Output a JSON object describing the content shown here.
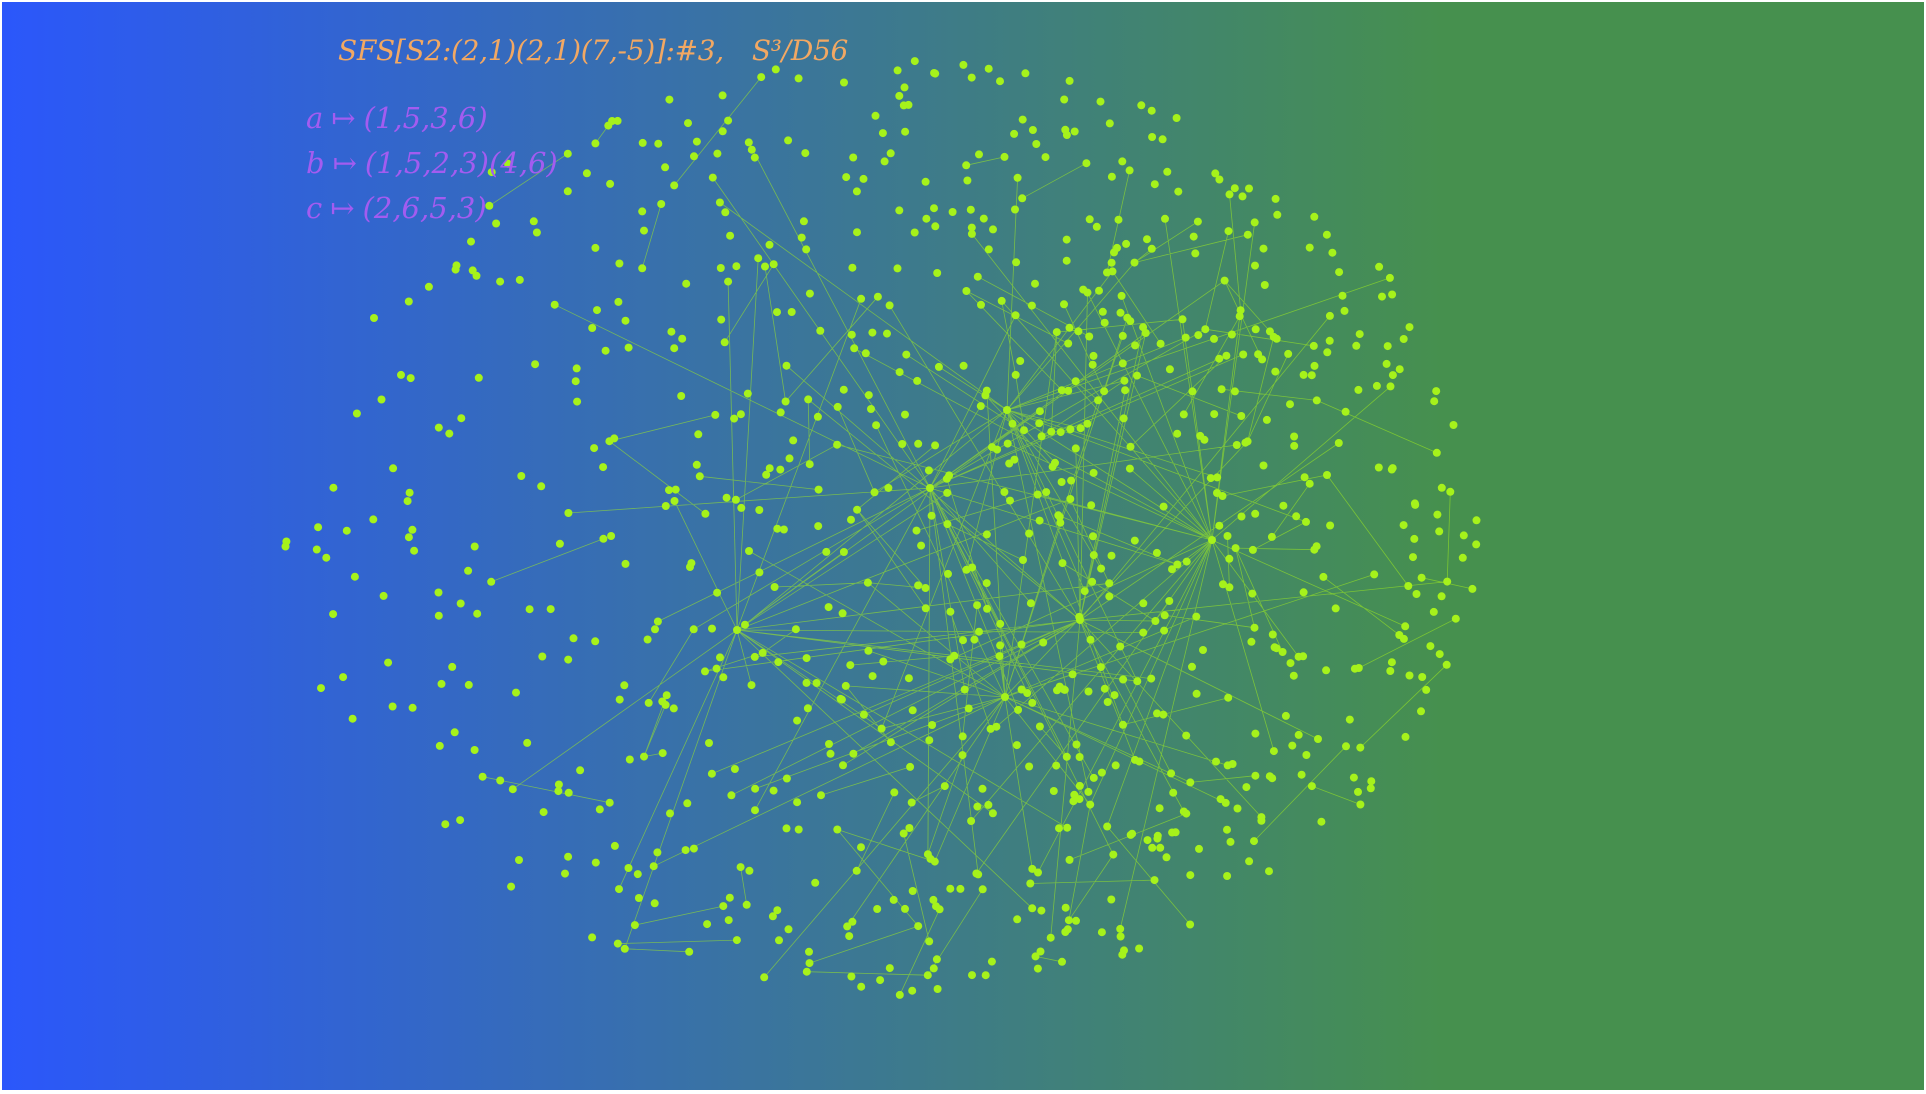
{
  "title": {
    "manifold": "SFS[S2:(2,1)(2,1)(7,-5)]:#3,",
    "group": "S³/D56"
  },
  "generators": [
    {
      "name": "a",
      "arrow": "↦",
      "perm": "(1,5,3,6)"
    },
    {
      "name": "b",
      "arrow": "↦",
      "perm": "(1,5,2,3)(4,6)"
    },
    {
      "name": "c",
      "arrow": "↦",
      "perm": "(2,6,5,3)"
    }
  ],
  "colors": {
    "background_left": "#2b57fb",
    "background_mid": "#3e7c86",
    "background_right": "#46904e",
    "node": "#a6f21b",
    "edge": "#a6f21b",
    "title": "#f2a863",
    "generators": "#a35cf0"
  },
  "graph": {
    "type": "network",
    "node_count": 900,
    "hubs": 6
  }
}
